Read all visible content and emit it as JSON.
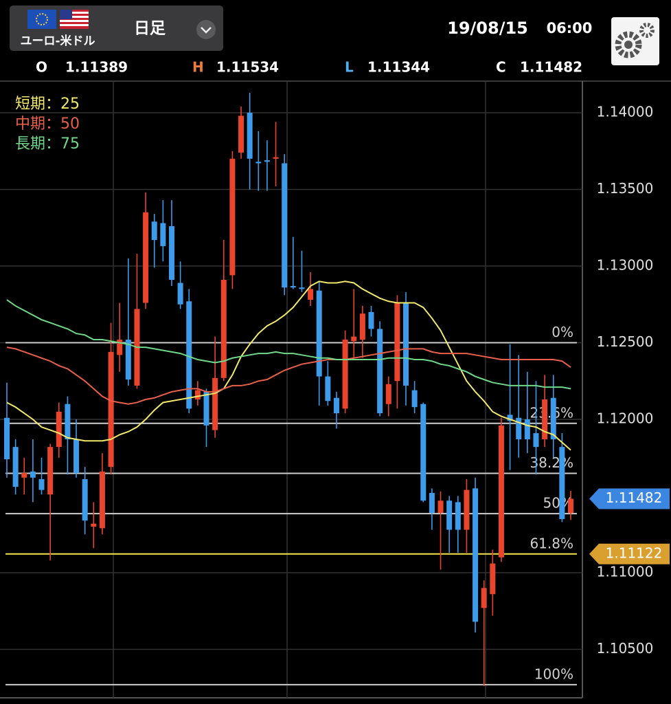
{
  "header": {
    "pair": "ユーロ-米ドル",
    "timeframe": "日足",
    "date": "19/08/15",
    "time": "06:00",
    "ohlc_labels": [
      {
        "label": "O",
        "color": "#ffffff"
      },
      {
        "label": "H",
        "color": "#f07a3a"
      },
      {
        "label": "L",
        "color": "#4fb0f0"
      },
      {
        "label": "C",
        "color": "#ffffff"
      }
    ]
  },
  "chart_data": {
    "type": "candlestick",
    "up_color": "#e8452c",
    "down_color": "#3d9be9",
    "open": [
      1.1201,
      1.1182,
      1.1162,
      1.1166,
      1.1161,
      1.1151,
      1.1182,
      1.121,
      1.1187,
      1.1161,
      1.113,
      1.1129,
      1.1169,
      1.1242,
      1.1252,
      1.1222,
      1.1276,
      1.1329,
      1.1328,
      1.1326,
      1.1289,
      1.1277,
      1.1213,
      1.1218,
      1.1193,
      1.1227,
      1.1294,
      1.1374,
      1.14,
      1.1368,
      1.1369,
      1.137,
      1.1367,
      1.1287,
      1.1286,
      1.1278,
      1.1284,
      1.1228,
      1.1214,
      1.1207,
      1.1251,
      1.1252,
      1.127,
      1.1259,
      1.121,
      1.1225,
      1.1276,
      1.1219,
      1.121,
      1.1152,
      1.1139,
      1.1147,
      1.1146,
      1.1128,
      1.1155,
      1.1077,
      1.1086,
      1.111,
      1.1203,
      1.1201,
      1.12,
      1.1191,
      1.1187,
      1.1214,
      1.1182,
      1.11389
    ],
    "high": [
      1.1224,
      1.1187,
      1.1175,
      1.1187,
      1.1175,
      1.1184,
      1.1211,
      1.1215,
      1.12,
      1.1169,
      1.1146,
      1.1178,
      1.1263,
      1.1276,
      1.1305,
      1.1308,
      1.1348,
      1.1334,
      1.1343,
      1.1343,
      1.1303,
      1.1285,
      1.1225,
      1.122,
      1.1254,
      1.1317,
      1.1375,
      1.1404,
      1.1413,
      1.1388,
      1.1382,
      1.1394,
      1.1373,
      1.1319,
      1.131,
      1.1296,
      1.129,
      1.1238,
      1.1218,
      1.1258,
      1.1285,
      1.1274,
      1.1274,
      1.1264,
      1.1228,
      1.1281,
      1.1283,
      1.1225,
      1.1211,
      1.1155,
      1.1153,
      1.115,
      1.115,
      1.1161,
      1.1162,
      1.1095,
      1.1115,
      1.1201,
      1.1249,
      1.1242,
      1.1231,
      1.1225,
      1.1229,
      1.1229,
      1.1191,
      1.11534
    ],
    "low": [
      1.1162,
      1.1151,
      1.1151,
      1.1146,
      1.1151,
      1.1108,
      1.1175,
      1.1164,
      1.1162,
      1.1125,
      1.1116,
      1.1125,
      1.1164,
      1.1231,
      1.1222,
      1.122,
      1.1272,
      1.1299,
      1.1303,
      1.1287,
      1.1272,
      1.1204,
      1.1209,
      1.1182,
      1.1188,
      1.1225,
      1.1285,
      1.137,
      1.135,
      1.1349,
      1.1349,
      1.1352,
      1.1281,
      1.1285,
      1.1283,
      1.1274,
      1.1209,
      1.1209,
      1.1194,
      1.1204,
      1.124,
      1.124,
      1.1254,
      1.1202,
      1.1202,
      1.1207,
      1.1209,
      1.1204,
      1.1146,
      1.1128,
      1.1102,
      1.1113,
      1.1113,
      1.1113,
      1.1061,
      1.1026,
      1.1072,
      1.1107,
      1.1167,
      1.1175,
      1.1178,
      1.1164,
      1.1182,
      1.1175,
      1.1133,
      1.11344
    ],
    "close": [
      1.1174,
      1.1156,
      1.1165,
      1.1162,
      1.1154,
      1.1182,
      1.1205,
      1.1187,
      1.1165,
      1.1134,
      1.1132,
      1.1166,
      1.1244,
      1.1252,
      1.1226,
      1.1272,
      1.1335,
      1.1317,
      1.1313,
      1.1291,
      1.1275,
      1.1207,
      1.1219,
      1.1196,
      1.1227,
      1.1291,
      1.137,
      1.1398,
      1.137,
      1.1367,
      1.1368,
      1.1371,
      1.1286,
      1.1286,
      1.1285,
      1.1285,
      1.1228,
      1.1212,
      1.1204,
      1.1252,
      1.1254,
      1.1269,
      1.1259,
      1.1204,
      1.1223,
      1.1276,
      1.1222,
      1.1208,
      1.1147,
      1.1139,
      1.1147,
      1.1128,
      1.1128,
      1.1154,
      1.1068,
      1.109,
      1.1106,
      1.1196,
      1.1199,
      1.1187,
      1.1187,
      1.1182,
      1.1213,
      1.1187,
      1.1135,
      1.11482
    ],
    "series": [
      {
        "name": "短期：25",
        "color": "#f2e86a",
        "values": [
          1.1211,
          1.1208,
          1.1204,
          1.12,
          1.1195,
          1.1193,
          1.1191,
          1.1188,
          1.1187,
          1.1186,
          1.1186,
          1.1186,
          1.1187,
          1.119,
          1.1192,
          1.1195,
          1.12,
          1.1206,
          1.1211,
          1.1212,
          1.1213,
          1.1214,
          1.1215,
          1.1216,
          1.1217,
          1.122,
          1.1229,
          1.1241,
          1.1249,
          1.1256,
          1.1261,
          1.1264,
          1.1268,
          1.1273,
          1.128,
          1.1287,
          1.129,
          1.1289,
          1.1289,
          1.129,
          1.1289,
          1.1285,
          1.1282,
          1.1279,
          1.1277,
          1.1276,
          1.1276,
          1.1276,
          1.1273,
          1.1266,
          1.1258,
          1.1247,
          1.1236,
          1.1225,
          1.1218,
          1.1212,
          1.1205,
          1.1202,
          1.12,
          1.1198,
          1.1196,
          1.1195,
          1.1192,
          1.119,
          1.1185,
          1.118
        ]
      },
      {
        "name": "中期：50",
        "color": "#e8604a",
        "values": [
          1.1247,
          1.1246,
          1.1244,
          1.1242,
          1.124,
          1.1238,
          1.1235,
          1.1233,
          1.1229,
          1.1225,
          1.122,
          1.1215,
          1.1212,
          1.1211,
          1.121,
          1.1211,
          1.1213,
          1.1214,
          1.1216,
          1.1218,
          1.1219,
          1.122,
          1.122,
          1.1218,
          1.1218,
          1.122,
          1.1222,
          1.1222,
          1.1223,
          1.1225,
          1.1226,
          1.1229,
          1.1232,
          1.1234,
          1.1236,
          1.1237,
          1.1238,
          1.1239,
          1.1239,
          1.1239,
          1.124,
          1.1241,
          1.1242,
          1.1243,
          1.1244,
          1.1245,
          1.1246,
          1.1246,
          1.1246,
          1.1244,
          1.1243,
          1.1243,
          1.1243,
          1.1243,
          1.1242,
          1.1241,
          1.124,
          1.1239,
          1.1239,
          1.1239,
          1.1239,
          1.1239,
          1.1239,
          1.1239,
          1.1238,
          1.1234
        ]
      },
      {
        "name": "長期：75",
        "color": "#6fd98a",
        "values": [
          1.1278,
          1.1274,
          1.1271,
          1.1268,
          1.1265,
          1.1263,
          1.1261,
          1.1259,
          1.1256,
          1.1255,
          1.1252,
          1.1252,
          1.1251,
          1.125,
          1.1249,
          1.1247,
          1.1247,
          1.1246,
          1.1245,
          1.1244,
          1.1243,
          1.1241,
          1.1239,
          1.1238,
          1.1237,
          1.1238,
          1.124,
          1.1241,
          1.1242,
          1.1243,
          1.1243,
          1.1244,
          1.1243,
          1.1243,
          1.1242,
          1.1241,
          1.124,
          1.124,
          1.1239,
          1.1239,
          1.1239,
          1.1239,
          1.1239,
          1.1239,
          1.124,
          1.124,
          1.124,
          1.1239,
          1.1239,
          1.1238,
          1.1236,
          1.1235,
          1.1233,
          1.1231,
          1.1228,
          1.1226,
          1.1224,
          1.1223,
          1.1222,
          1.1222,
          1.1222,
          1.1222,
          1.1221,
          1.1221,
          1.1221,
          1.122
        ]
      }
    ],
    "ylim": [
      1.10184,
      1.14206
    ],
    "yticks": [
      {
        "value": 1.105,
        "label": "1.10500"
      },
      {
        "value": 1.11,
        "label": "1.11000"
      },
      {
        "value": 1.12,
        "label": "1.12000"
      },
      {
        "value": 1.125,
        "label": "1.12500"
      },
      {
        "value": 1.13,
        "label": "1.13000"
      },
      {
        "value": 1.135,
        "label": "1.13500"
      },
      {
        "value": 1.14,
        "label": "1.14000"
      }
    ],
    "grid": true,
    "levels": [
      {
        "label": "0%",
        "value": 1.125,
        "color": "#cfcfcf"
      },
      {
        "label": "23.6%",
        "value": 1.11974,
        "color": "#cfcfcf"
      },
      {
        "label": "38.2%",
        "value": 1.11648,
        "color": "#cfcfcf"
      },
      {
        "label": "50%",
        "value": 1.11385,
        "color": "#cfcfcf"
      },
      {
        "label": "61.8%",
        "value": 1.11122,
        "color": "#f2e64a"
      },
      {
        "label": "100%",
        "value": 1.1027,
        "color": "#cfcfcf"
      }
    ],
    "price_tags": [
      {
        "value": 1.11482,
        "color": "#3b86e0"
      },
      {
        "value": 1.11122,
        "color": "#d9a030"
      }
    ]
  }
}
